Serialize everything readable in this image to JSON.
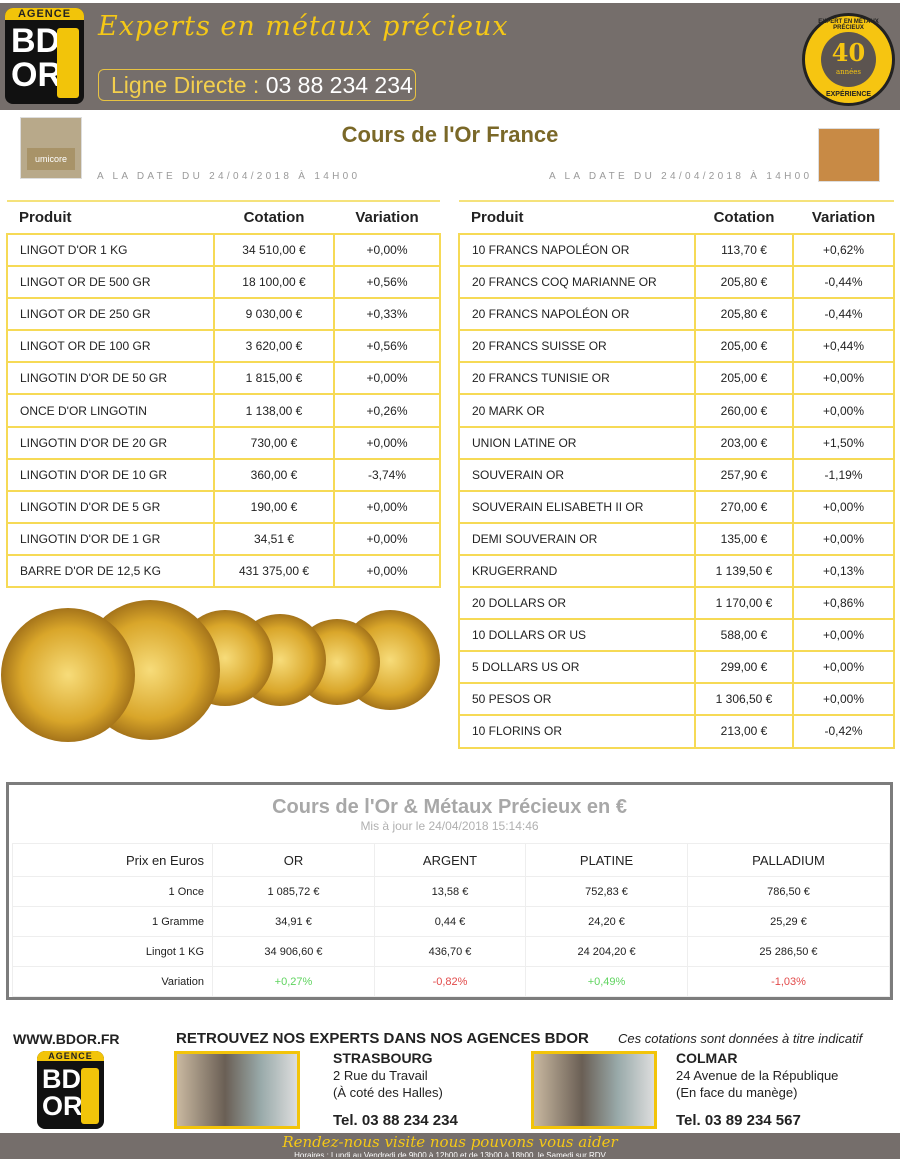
{
  "header": {
    "logo_agence": "AGENCE",
    "logo_bd": "BD",
    "logo_or": "OR",
    "slogan": "Experts en métaux précieux",
    "ligne_label": "Ligne Directe : ",
    "ligne_number": "03 88 234 234",
    "badge_top": "EXPERT EN MÉTAUX PRÉCIEUX",
    "badge_num": "40",
    "badge_sub": "années",
    "badge_bottom": "EXPÉRIENCE"
  },
  "title": "Cours de l'Or France",
  "date_left": "A LA DATE DU 24/04/2018 À 14H00",
  "date_right": "A LA DATE DU 24/04/2018 À 14H00",
  "thumb_left_text": "umicore",
  "columns": [
    "Produit",
    "Cotation",
    "Variation"
  ],
  "colors": {
    "positive": "#5fd45f",
    "negative": "#e24a4a",
    "border": "#f6da56",
    "header_bg": "#756e6b",
    "accent": "#f2c40a"
  },
  "left_table": [
    [
      "LINGOT D'OR 1 KG",
      "34 510,00 €",
      "+0,00%"
    ],
    [
      "LINGOT OR DE 500 GR",
      "18 100,00 €",
      "+0,56%"
    ],
    [
      "LINGOT OR DE 250 GR",
      "9 030,00 €",
      "+0,33%"
    ],
    [
      "LINGOT OR DE 100 GR",
      "3 620,00 €",
      "+0,56%"
    ],
    [
      "LINGOTIN D'OR DE 50 GR",
      "1 815,00 €",
      "+0,00%"
    ],
    [
      "ONCE D'OR LINGOTIN",
      "1 138,00 €",
      "+0,26%"
    ],
    [
      "LINGOTIN D'OR DE 20 GR",
      "730,00 €",
      "+0,00%"
    ],
    [
      "LINGOTIN D'OR DE 10 GR",
      "360,00 €",
      "-3,74%"
    ],
    [
      "LINGOTIN D'OR DE 5 GR",
      "190,00 €",
      "+0,00%"
    ],
    [
      "LINGOTIN D'OR DE 1 GR",
      "34,51 €",
      "+0,00%"
    ],
    [
      "BARRE D'OR DE 12,5 KG",
      "431 375,00 €",
      "+0,00%"
    ]
  ],
  "right_table": [
    [
      "10 FRANCS NAPOLÉON OR",
      "113,70 €",
      "+0,62%"
    ],
    [
      "20 FRANCS COQ MARIANNE OR",
      "205,80 €",
      "-0,44%"
    ],
    [
      "20 FRANCS NAPOLÉON OR",
      "205,80 €",
      "-0,44%"
    ],
    [
      "20 FRANCS SUISSE OR",
      "205,00 €",
      "+0,44%"
    ],
    [
      "20 FRANCS TUNISIE OR",
      "205,00 €",
      "+0,00%"
    ],
    [
      "20 MARK OR",
      "260,00 €",
      "+0,00%"
    ],
    [
      "UNION LATINE OR",
      "203,00 €",
      "+1,50%"
    ],
    [
      "SOUVERAIN OR",
      "257,90 €",
      "-1,19%"
    ],
    [
      "SOUVERAIN ELISABETH II OR",
      "270,00 €",
      "+0,00%"
    ],
    [
      "DEMI SOUVERAIN OR",
      "135,00 €",
      "+0,00%"
    ],
    [
      "KRUGERRAND",
      "1 139,50 €",
      "+0,13%"
    ],
    [
      "20 DOLLARS OR",
      "1 170,00 €",
      "+0,86%"
    ],
    [
      "10 DOLLARS OR US",
      "588,00 €",
      "+0,00%"
    ],
    [
      "5 DOLLARS US OR",
      "299,00 €",
      "+0,00%"
    ],
    [
      "50 PESOS OR",
      "1 306,50 €",
      "+0,00%"
    ],
    [
      "10 FLORINS OR",
      "213,00 €",
      "-0,42%"
    ]
  ],
  "metals": {
    "title": "Cours de l'Or & Métaux Précieux en €",
    "updated": "Mis à jour le 24/04/2018 15:14:46",
    "headers": [
      "Prix en Euros",
      "OR",
      "ARGENT",
      "PLATINE",
      "PALLADIUM"
    ],
    "rows": [
      [
        "1 Once",
        "1 085,72 €",
        "13,58 €",
        "752,83 €",
        "786,50 €"
      ],
      [
        "1 Gramme",
        "34,91 €",
        "0,44 €",
        "24,20 €",
        "25,29 €"
      ],
      [
        "Lingot 1 KG",
        "34 906,60 €",
        "436,70 €",
        "24 204,20 €",
        "25 286,50 €"
      ],
      [
        "Variation",
        "+0,27%",
        "-0,82%",
        "+0,49%",
        "-1,03%"
      ]
    ]
  },
  "footer": {
    "website": "WWW.BDOR.FR",
    "headline": "RETROUVEZ NOS EXPERTS DANS NOS AGENCES BDOR",
    "disclaimer": "Ces cotations sont données à titre indicatif",
    "strasbourg": {
      "city": "STRASBOURG",
      "line1": "2 Rue du Travail",
      "line2": "(À coté des Halles)",
      "tel": "Tel. 03 88 234 234"
    },
    "colmar": {
      "city": "COLMAR",
      "line1": "24 Avenue de la République",
      "line2": "(En face du manège)",
      "tel": "Tel. 03 89 234 567"
    },
    "slogan": "Rendez-nous visite nous pouvons vous aider",
    "hours": "Horaires : Lundi au Vendredi de 9h00 à 12h00 et de 13h00 à 18h00, le Samedi sur RDV"
  }
}
